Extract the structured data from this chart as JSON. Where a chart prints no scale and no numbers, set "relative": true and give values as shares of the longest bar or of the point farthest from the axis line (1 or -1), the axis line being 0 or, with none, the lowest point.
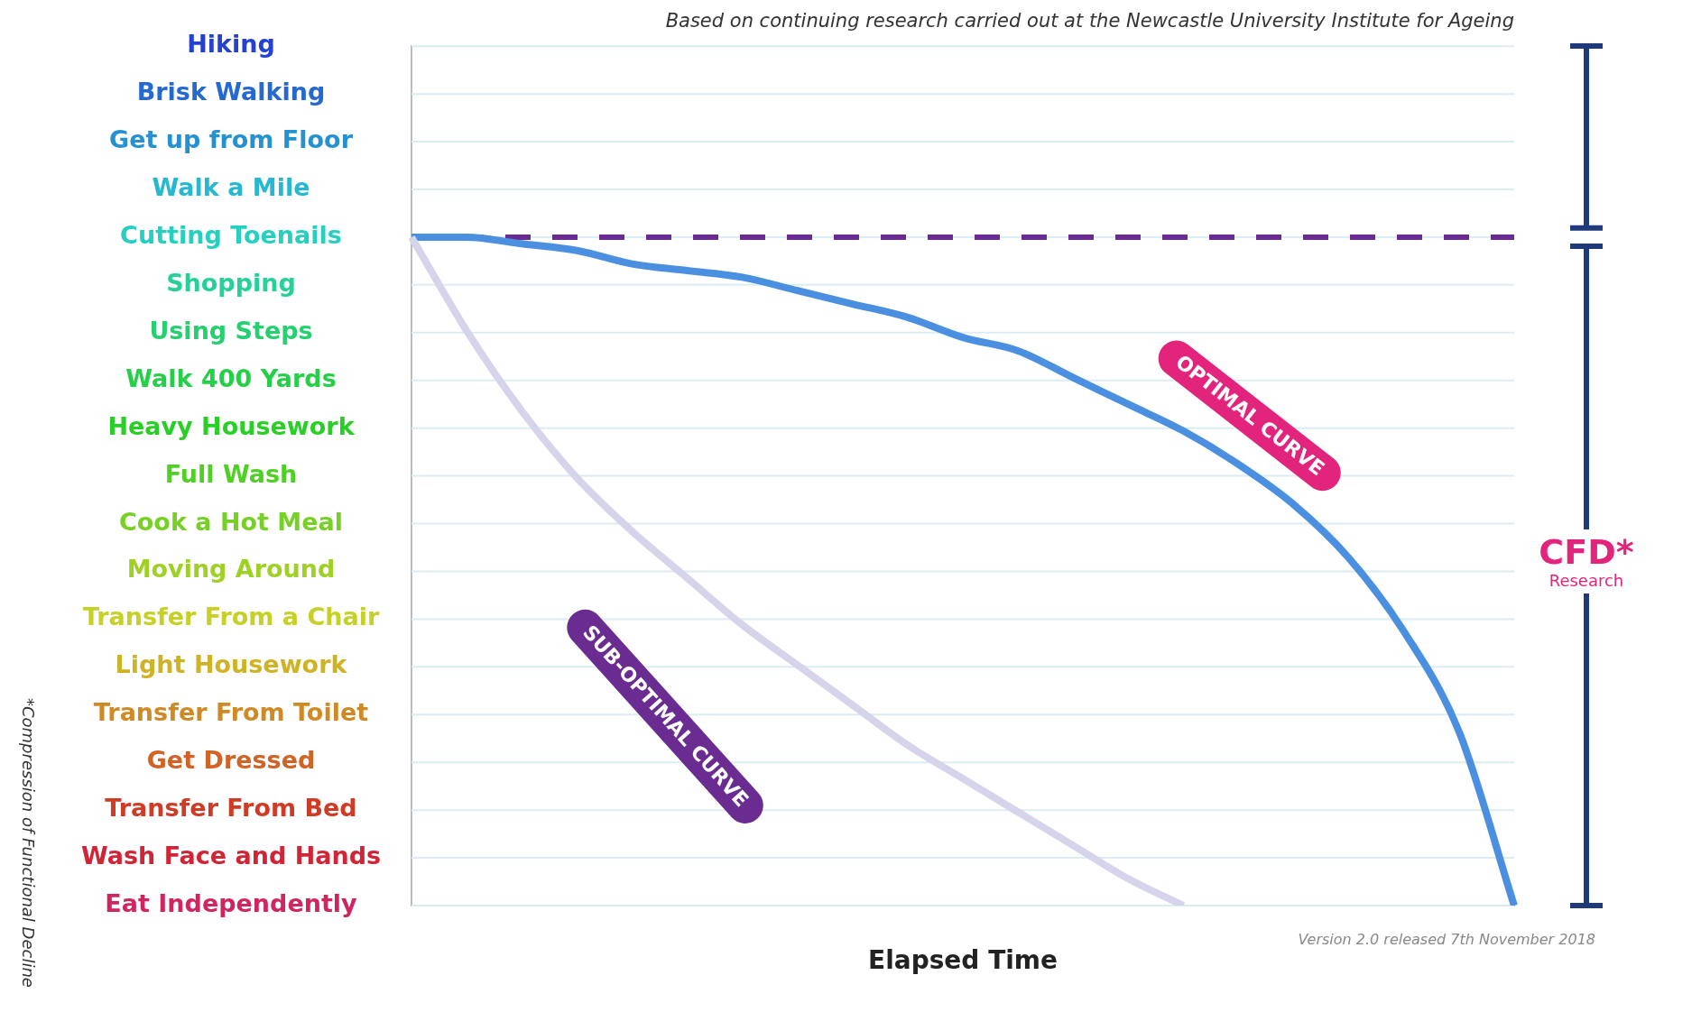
{
  "chart_data": {
    "type": "line",
    "subtitle": "Based on continuing research carried out at the Newcastle University Institute for Ageing",
    "xlabel": "Elapsed Time",
    "relative": true,
    "categories": [
      null,
      null,
      null,
      null,
      null,
      null,
      null,
      null,
      null,
      null,
      null,
      null,
      null,
      null,
      null,
      null,
      null,
      null,
      null,
      null,
      null
    ],
    "series": [
      {
        "name": "OPTIMAL CURVE",
        "color": "#4a8fe0",
        "values": [
          1,
          1,
          0.99,
          0.98,
          0.96,
          0.95,
          0.94,
          0.92,
          0.9,
          0.88,
          0.85,
          0.83,
          0.79,
          0.75,
          0.71,
          0.66,
          0.6,
          0.52,
          0.41,
          0.26,
          0
        ]
      },
      {
        "name": "SUB-OPTIMAL CURVE",
        "color": "#d6d4ea",
        "values": [
          1,
          0.86,
          0.74,
          0.64,
          0.56,
          0.49,
          0.42,
          0.36,
          0.3,
          0.24,
          0.19,
          0.14,
          0.09,
          0.04,
          0,
          null,
          null,
          null,
          null,
          null,
          null
        ]
      }
    ],
    "ref_lines": [
      {
        "axis": "y",
        "value": 1,
        "color": "#6a2c91",
        "line_style": "dashed"
      }
    ],
    "annotations": [
      "Hiking",
      "Brisk Walking",
      "Get up from Floor",
      "Walk a Mile",
      "Cutting Toenails",
      "Shopping",
      "Using Steps",
      "Walk 400 Yards",
      "Heavy Housework",
      "Full Wash",
      "Cook a Hot Meal",
      "Moving Around",
      "Transfer From a Chair",
      "Light Housework",
      "Transfer From Toilet",
      "Get Dressed",
      "Transfer From Bed",
      "Wash Face and Hands",
      "Eat Independently",
      "CFD*",
      "Research",
      "*Compression of Functional Decline",
      "Version 2.0 released 7th November 2018"
    ],
    "grid": "y",
    "marker": "none",
    "legend": false
  }
}
